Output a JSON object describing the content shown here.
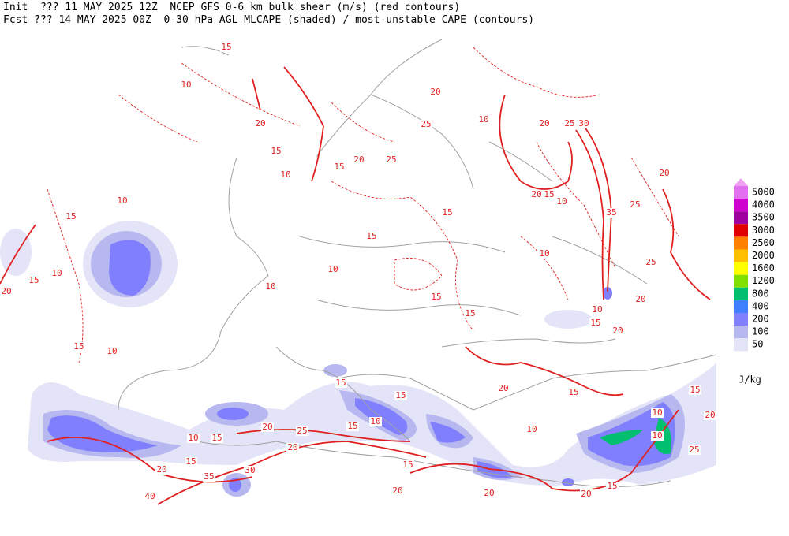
{
  "header": {
    "line1": "Init  ??? 11 MAY 2025 12Z  NCEP GFS 0-6 km bulk shear (m/s) (red contours)",
    "line2": "Fcst ??? 14 MAY 2025 00Z  0-30 hPa AGL MLCAPE (shaded) / most-unstable CAPE (contours)"
  },
  "legend": {
    "unit": "J/kg",
    "levels": [
      {
        "value": 5000,
        "color": "#e070f0"
      },
      {
        "value": 4000,
        "color": "#d000d0"
      },
      {
        "value": 3500,
        "color": "#a000a0"
      },
      {
        "value": 3000,
        "color": "#e00000"
      },
      {
        "value": 2500,
        "color": "#ff8000"
      },
      {
        "value": 2000,
        "color": "#ffc000"
      },
      {
        "value": 1600,
        "color": "#ffff00"
      },
      {
        "value": 1200,
        "color": "#80e000"
      },
      {
        "value": 800,
        "color": "#00c070"
      },
      {
        "value": 400,
        "color": "#4080ff"
      },
      {
        "value": 200,
        "color": "#8080ff"
      },
      {
        "value": 100,
        "color": "#b8b8f0"
      },
      {
        "value": 50,
        "color": "#e4e4f8"
      }
    ],
    "top_color": "#f0a0f0"
  },
  "contour_labels": [
    15,
    10,
    20,
    15,
    10,
    15,
    20,
    25,
    20,
    25,
    10,
    20,
    25,
    30,
    20,
    15,
    10,
    35,
    25,
    20,
    25,
    20,
    10,
    15,
    15,
    10,
    20,
    10,
    15,
    10,
    10,
    15,
    15,
    10,
    15,
    10,
    20,
    15,
    15,
    15,
    15,
    10,
    15,
    20,
    25,
    15,
    10,
    20,
    15,
    20,
    30,
    35,
    40,
    20,
    20,
    20,
    15,
    10,
    10,
    15,
    20,
    25,
    20,
    10,
    15,
    15
  ]
}
